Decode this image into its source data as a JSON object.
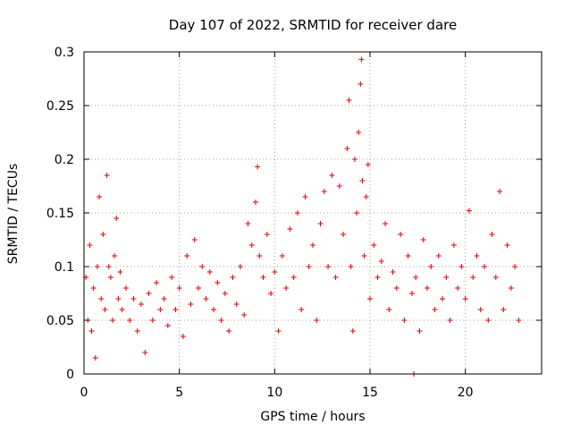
{
  "chart_data": {
    "type": "scatter",
    "title": "Day 107 of 2022, SRMTID for receiver dare",
    "xlabel": "GPS time / hours",
    "ylabel": "SRMTID / TECUs",
    "xlim": [
      0,
      24
    ],
    "ylim": [
      0,
      0.3
    ],
    "x_ticks": [
      0,
      5,
      10,
      15,
      20
    ],
    "x_tick_labels": [
      "0",
      "5",
      "10",
      "15",
      "20"
    ],
    "y_ticks": [
      0,
      0.05,
      0.1,
      0.15,
      0.2,
      0.25,
      0.3
    ],
    "y_tick_labels": [
      "0",
      "0.05",
      "0.1",
      "0.15",
      "0.2",
      "0.25",
      "0.3"
    ],
    "grid": true,
    "marker": "+",
    "color": "#e00000",
    "series": [
      {
        "name": "SRMTID",
        "points": [
          [
            0.1,
            0.09
          ],
          [
            0.2,
            0.05
          ],
          [
            0.3,
            0.12
          ],
          [
            0.4,
            0.04
          ],
          [
            0.5,
            0.08
          ],
          [
            0.6,
            0.015
          ],
          [
            0.7,
            0.1
          ],
          [
            0.8,
            0.165
          ],
          [
            0.9,
            0.07
          ],
          [
            1.0,
            0.13
          ],
          [
            1.1,
            0.06
          ],
          [
            1.2,
            0.185
          ],
          [
            1.3,
            0.1
          ],
          [
            1.4,
            0.09
          ],
          [
            1.5,
            0.05
          ],
          [
            1.6,
            0.11
          ],
          [
            1.7,
            0.145
          ],
          [
            1.8,
            0.07
          ],
          [
            1.9,
            0.095
          ],
          [
            2.0,
            0.06
          ],
          [
            2.2,
            0.08
          ],
          [
            2.4,
            0.05
          ],
          [
            2.6,
            0.07
          ],
          [
            2.8,
            0.04
          ],
          [
            3.0,
            0.065
          ],
          [
            3.2,
            0.02
          ],
          [
            3.4,
            0.075
          ],
          [
            3.6,
            0.05
          ],
          [
            3.8,
            0.085
          ],
          [
            4.0,
            0.06
          ],
          [
            4.2,
            0.07
          ],
          [
            4.4,
            0.045
          ],
          [
            4.6,
            0.09
          ],
          [
            4.8,
            0.06
          ],
          [
            5.0,
            0.08
          ],
          [
            5.2,
            0.035
          ],
          [
            5.4,
            0.11
          ],
          [
            5.6,
            0.065
          ],
          [
            5.8,
            0.125
          ],
          [
            6.0,
            0.08
          ],
          [
            6.2,
            0.1
          ],
          [
            6.4,
            0.07
          ],
          [
            6.6,
            0.095
          ],
          [
            6.8,
            0.06
          ],
          [
            7.0,
            0.085
          ],
          [
            7.2,
            0.05
          ],
          [
            7.4,
            0.075
          ],
          [
            7.6,
            0.04
          ],
          [
            7.8,
            0.09
          ],
          [
            8.0,
            0.065
          ],
          [
            8.2,
            0.1
          ],
          [
            8.4,
            0.055
          ],
          [
            8.6,
            0.14
          ],
          [
            8.8,
            0.12
          ],
          [
            9.0,
            0.16
          ],
          [
            9.1,
            0.193
          ],
          [
            9.2,
            0.11
          ],
          [
            9.4,
            0.09
          ],
          [
            9.6,
            0.13
          ],
          [
            9.8,
            0.075
          ],
          [
            10.0,
            0.095
          ],
          [
            10.2,
            0.04
          ],
          [
            10.4,
            0.11
          ],
          [
            10.6,
            0.08
          ],
          [
            10.8,
            0.135
          ],
          [
            11.0,
            0.09
          ],
          [
            11.2,
            0.15
          ],
          [
            11.4,
            0.06
          ],
          [
            11.6,
            0.165
          ],
          [
            11.8,
            0.1
          ],
          [
            12.0,
            0.12
          ],
          [
            12.2,
            0.05
          ],
          [
            12.4,
            0.14
          ],
          [
            12.6,
            0.17
          ],
          [
            12.8,
            0.1
          ],
          [
            13.0,
            0.185
          ],
          [
            13.2,
            0.09
          ],
          [
            13.4,
            0.175
          ],
          [
            13.6,
            0.13
          ],
          [
            13.8,
            0.21
          ],
          [
            13.9,
            0.255
          ],
          [
            14.0,
            0.1
          ],
          [
            14.1,
            0.04
          ],
          [
            14.2,
            0.2
          ],
          [
            14.3,
            0.15
          ],
          [
            14.4,
            0.225
          ],
          [
            14.5,
            0.27
          ],
          [
            14.55,
            0.293
          ],
          [
            14.6,
            0.18
          ],
          [
            14.7,
            0.11
          ],
          [
            14.8,
            0.165
          ],
          [
            14.9,
            0.195
          ],
          [
            15.0,
            0.07
          ],
          [
            15.2,
            0.12
          ],
          [
            15.4,
            0.09
          ],
          [
            15.6,
            0.105
          ],
          [
            15.8,
            0.14
          ],
          [
            16.0,
            0.06
          ],
          [
            16.2,
            0.095
          ],
          [
            16.4,
            0.08
          ],
          [
            16.6,
            0.13
          ],
          [
            16.8,
            0.05
          ],
          [
            17.0,
            0.11
          ],
          [
            17.2,
            0.075
          ],
          [
            17.4,
            0.09
          ],
          [
            17.6,
            0.04
          ],
          [
            17.8,
            0.125
          ],
          [
            18.0,
            0.08
          ],
          [
            18.2,
            0.1
          ],
          [
            18.4,
            0.06
          ],
          [
            18.6,
            0.11
          ],
          [
            18.8,
            0.07
          ],
          [
            19.0,
            0.09
          ],
          [
            19.2,
            0.05
          ],
          [
            19.4,
            0.12
          ],
          [
            19.6,
            0.08
          ],
          [
            19.8,
            0.1
          ],
          [
            20.0,
            0.07
          ],
          [
            20.2,
            0.152
          ],
          [
            20.4,
            0.09
          ],
          [
            20.6,
            0.11
          ],
          [
            20.8,
            0.06
          ],
          [
            21.0,
            0.1
          ],
          [
            21.2,
            0.05
          ],
          [
            21.4,
            0.13
          ],
          [
            21.6,
            0.09
          ],
          [
            21.8,
            0.17
          ],
          [
            22.0,
            0.06
          ],
          [
            22.2,
            0.12
          ],
          [
            22.4,
            0.08
          ],
          [
            22.6,
            0.1
          ],
          [
            22.8,
            0.05
          ],
          [
            17.3,
            0.0
          ]
        ]
      }
    ]
  }
}
